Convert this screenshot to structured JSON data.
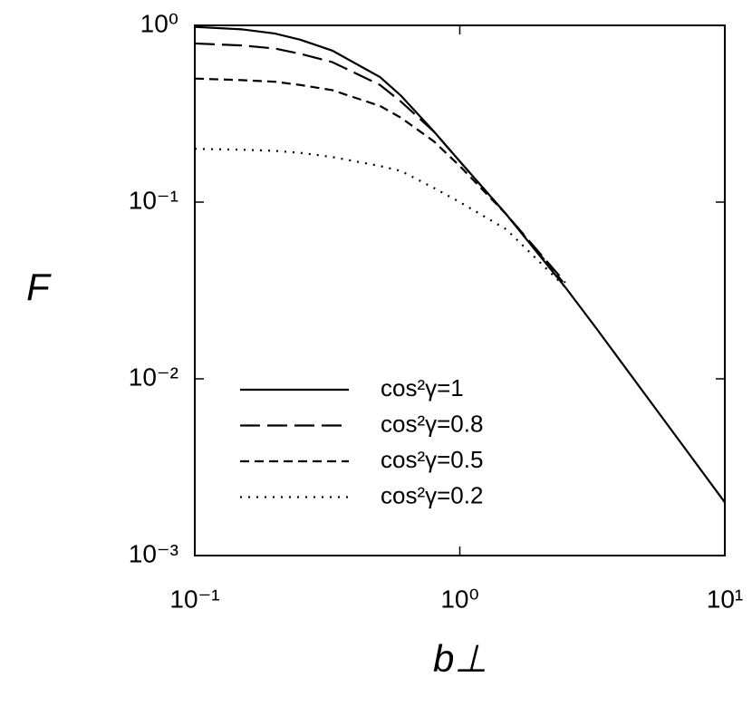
{
  "chart_data": {
    "type": "line",
    "x_label": "b⊥",
    "y_label": "F",
    "xscale": "log",
    "yscale": "log",
    "xlim": [
      0.1,
      10
    ],
    "ylim": [
      0.001,
      1
    ],
    "xticks": [
      {
        "value": 0.1,
        "label": "10⁻¹"
      },
      {
        "value": 1,
        "label": "10⁰"
      },
      {
        "value": 10,
        "label": "10¹"
      }
    ],
    "yticks": [
      {
        "value": 0.001,
        "label": "10⁻³"
      },
      {
        "value": 0.01,
        "label": "10⁻²"
      },
      {
        "value": 0.1,
        "label": "10⁻¹"
      },
      {
        "value": 1,
        "label": "10⁰"
      }
    ],
    "legend": "lower left",
    "x": [
      0.1,
      0.15,
      0.2,
      0.25,
      0.33,
      0.5,
      0.6,
      0.8,
      1,
      1.5,
      2.5,
      3.3,
      10
    ],
    "series": [
      {
        "name": "cos²γ=1",
        "color": "#000000",
        "dash": "solid",
        "values": [
          0.98,
          0.95,
          0.9,
          0.83,
          0.72,
          0.51,
          0.4,
          0.25,
          0.17,
          0.085,
          0.033,
          0.019,
          0.002
        ]
      },
      {
        "name": "cos²γ=0.8",
        "color": "#000000",
        "dash": "long-dash",
        "values": [
          0.79,
          0.77,
          0.74,
          0.69,
          0.62,
          0.46,
          0.37,
          0.25,
          0.17,
          0.085,
          0.035,
          null,
          null
        ]
      },
      {
        "name": "cos²γ=0.5",
        "color": "#000000",
        "dash": "dash",
        "values": [
          0.5,
          0.49,
          0.48,
          0.46,
          0.43,
          0.35,
          0.3,
          0.22,
          0.16,
          0.085,
          0.034,
          null,
          null
        ]
      },
      {
        "name": "cos²γ=0.2",
        "color": "#000000",
        "dash": "dot",
        "values": [
          0.2,
          0.198,
          0.195,
          0.19,
          0.18,
          0.16,
          0.15,
          0.12,
          0.1,
          0.07,
          0.033,
          null,
          null
        ]
      }
    ]
  }
}
